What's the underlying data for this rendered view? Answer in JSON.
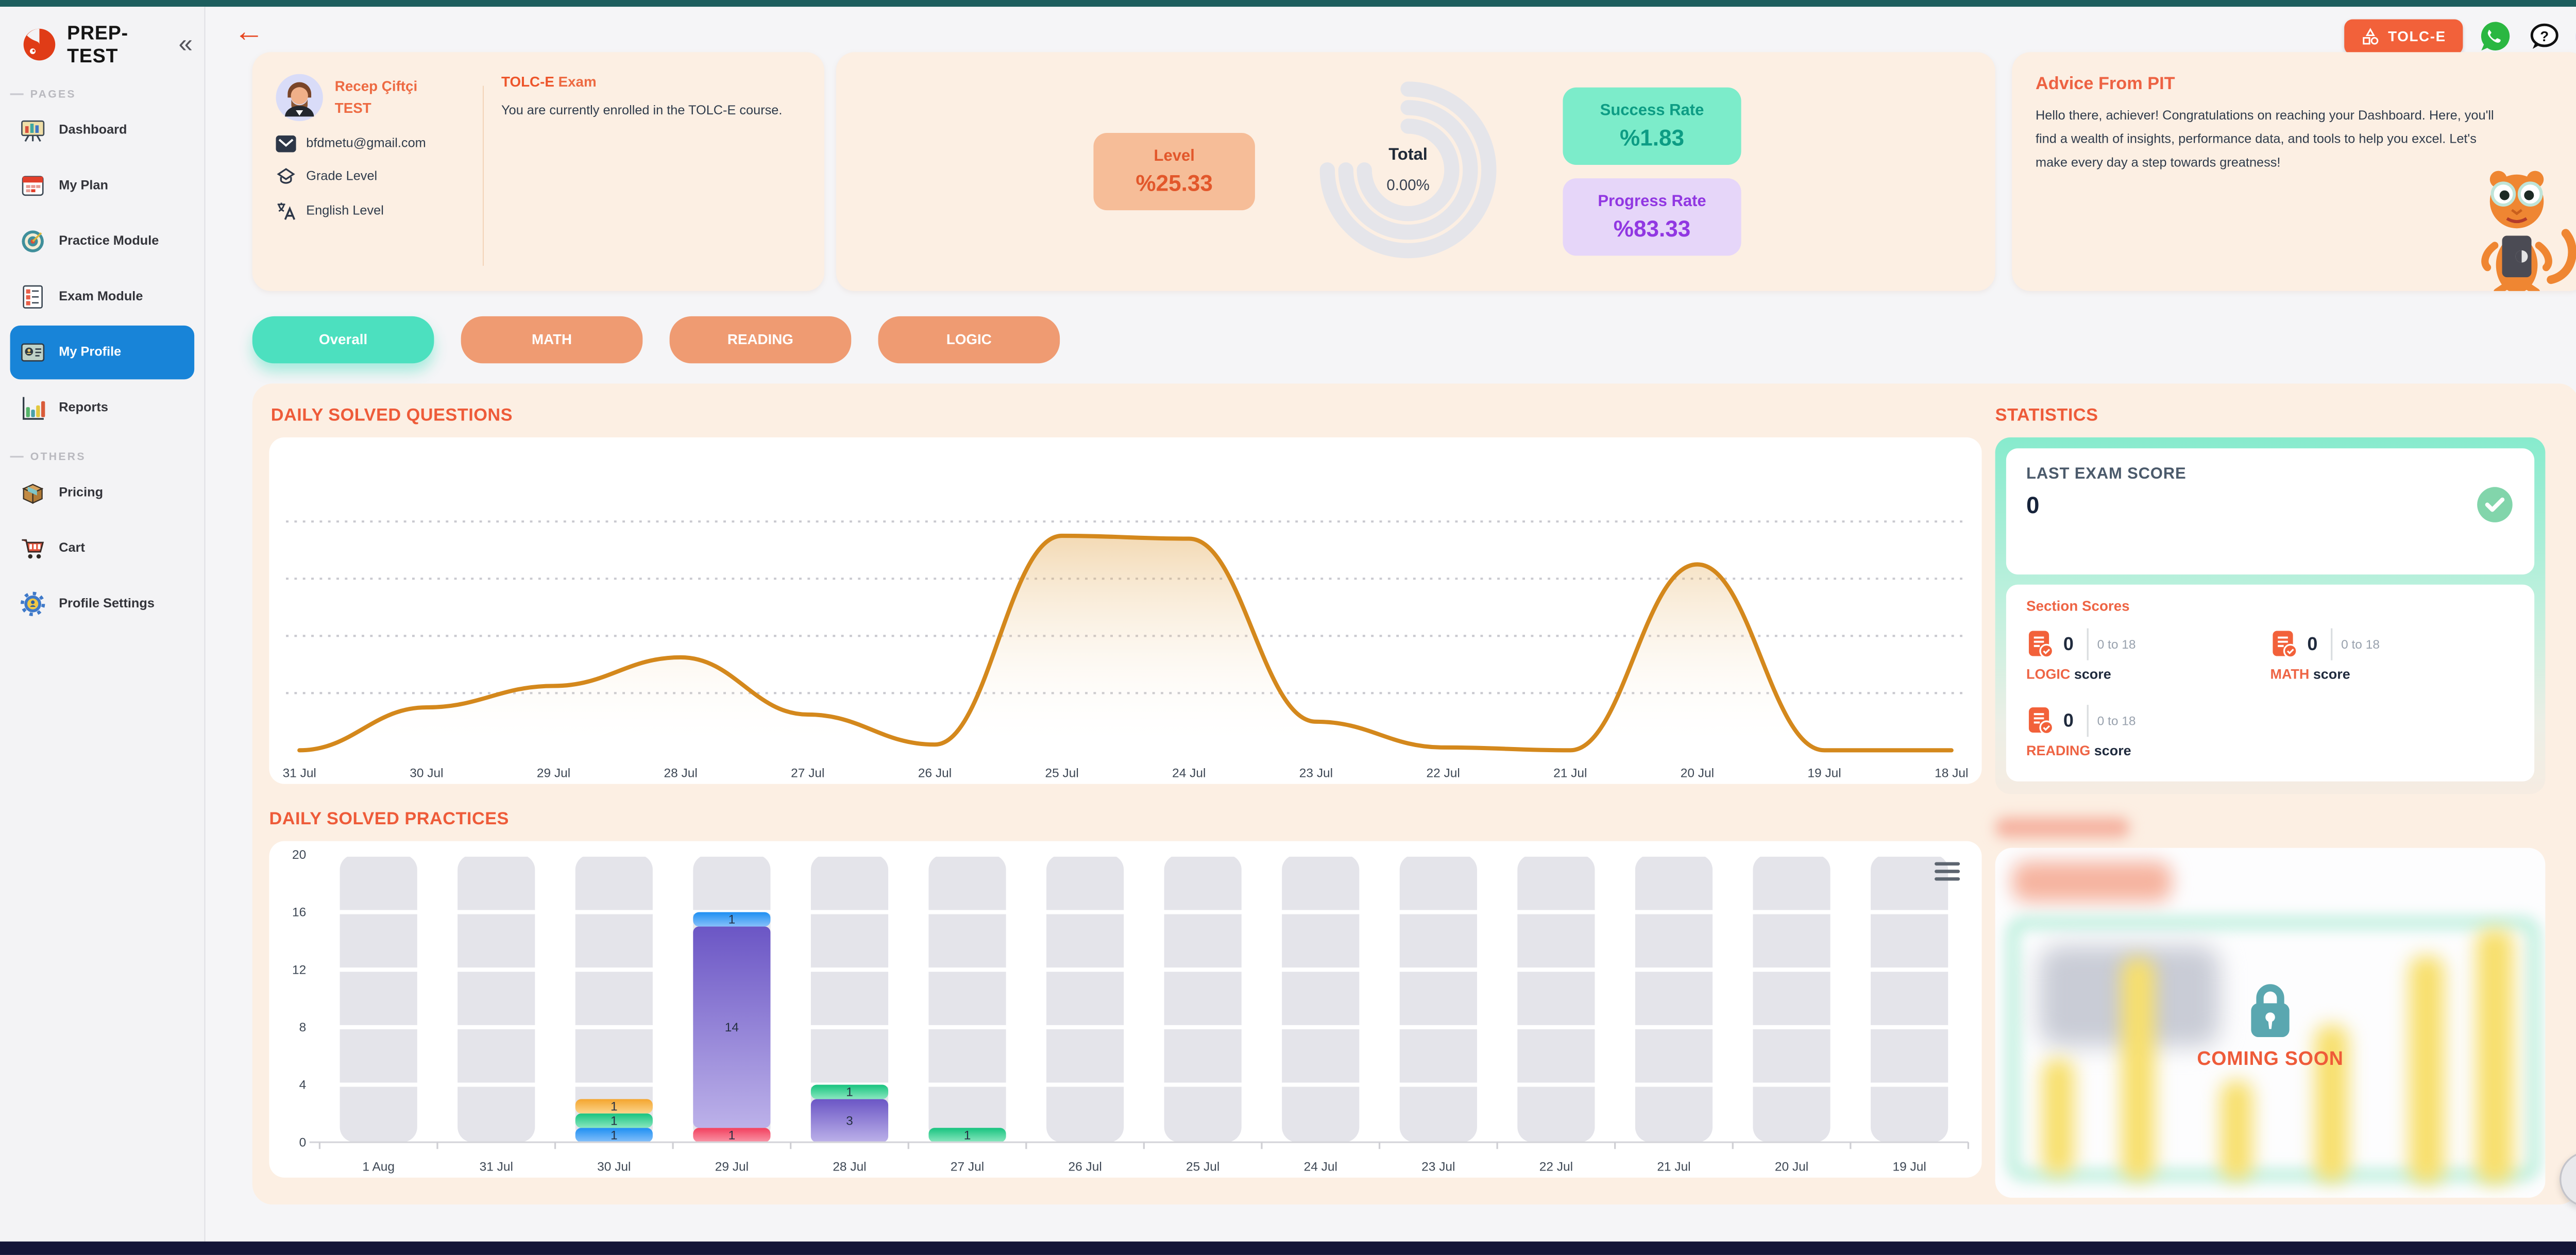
{
  "brand": {
    "name": "PREP-TEST"
  },
  "sidebar": {
    "sections": [
      {
        "label": "PAGES",
        "items": [
          {
            "label": "Dashboard"
          },
          {
            "label": "My Plan"
          },
          {
            "label": "Practice Module"
          },
          {
            "label": "Exam Module"
          },
          {
            "label": "My Profile",
            "active": true
          },
          {
            "label": "Reports"
          }
        ]
      },
      {
        "label": "OTHERS",
        "items": [
          {
            "label": "Pricing"
          },
          {
            "label": "Cart"
          },
          {
            "label": "Profile Settings"
          }
        ]
      }
    ]
  },
  "topbar": {
    "exam_button": "TOLC-E"
  },
  "profile_card": {
    "name": "Recep Çiftçi",
    "surname": "TEST",
    "email": "bfdmetu@gmail.com",
    "grade_label": "Grade Level",
    "english_label": "English Level",
    "exam_name": "TOLC-E",
    "exam_word": " Exam",
    "exam_desc": "You are currently enrolled in the TOLC-E course."
  },
  "stats_card": {
    "level_label": "Level",
    "level_value": "%25.33",
    "gauge_title": "Total",
    "gauge_value": "0.00%",
    "success_label": "Success Rate",
    "success_value": "%1.83",
    "progress_label": "Progress Rate",
    "progress_value": "%83.33"
  },
  "advice_card": {
    "title": "Advice From PIT",
    "body": "Hello there, achiever! Congratulations on reaching your Dashboard. Here, you'll find a wealth of insights, performance data, and tools to help you excel. Let's make every day a step towards greatness!"
  },
  "tabs": [
    {
      "label": "Overall",
      "active": true
    },
    {
      "label": "MATH"
    },
    {
      "label": "READING"
    },
    {
      "label": "LOGIC"
    }
  ],
  "statistics": {
    "title": "STATISTICS",
    "last_exam_label": "LAST EXAM SCORE",
    "last_exam_value": "0",
    "section_scores_title": "Section Scores",
    "scores": [
      {
        "subject": "LOGIC",
        "value": "0",
        "range": "0 to 18",
        "suffix": " score"
      },
      {
        "subject": "MATH",
        "value": "0",
        "range": "0 to 18",
        "suffix": " score"
      },
      {
        "subject": "READING",
        "value": "0",
        "range": "0 to 18",
        "suffix": " score"
      }
    ],
    "coming_soon": "COMING SOON"
  },
  "chart_data": [
    {
      "id": "daily-solved-questions",
      "type": "area",
      "title": "DAILY SOLVED QUESTIONS",
      "x": [
        "31 Jul",
        "30 Jul",
        "29 Jul",
        "28 Jul",
        "27 Jul",
        "26 Jul",
        "25 Jul",
        "24 Jul",
        "23 Jul",
        "22 Jul",
        "21 Jul",
        "20 Jul",
        "19 Jul",
        "18 Jul"
      ],
      "values": [
        0,
        3,
        4.5,
        6.5,
        2.5,
        0.4,
        15,
        14.8,
        2,
        0.2,
        0,
        13,
        0,
        0
      ],
      "ylim": [
        0,
        17
      ],
      "gridline_values": [
        4,
        8,
        12,
        16
      ],
      "grid_style": "dashed",
      "legend": "none",
      "line_color": "#d4881c",
      "fill_top": "rgba(221,148,41,0.35)",
      "fill_bottom": "rgba(255,255,255,0)"
    },
    {
      "id": "daily-solved-practices",
      "type": "bar",
      "stacked": true,
      "title": "DAILY SOLVED PRACTICES",
      "categories": [
        "1 Aug",
        "31 Jul",
        "30 Jul",
        "29 Jul",
        "28 Jul",
        "27 Jul",
        "26 Jul",
        "25 Jul",
        "24 Jul",
        "23 Jul",
        "22 Jul",
        "21 Jul",
        "20 Jul",
        "19 Jul"
      ],
      "yticks": [
        0,
        4,
        8,
        12,
        16,
        20
      ],
      "ylim": [
        0,
        20
      ],
      "track_color": "#e4e4ea",
      "palette": {
        "blue": [
          "#1e8ff2",
          "#86c0fa"
        ],
        "green": [
          "#17c37f",
          "#8ae7bf"
        ],
        "amber": [
          "#f4a52e",
          "#fbd48c"
        ],
        "purple": [
          "#6b56c5",
          "#bcb1e9"
        ],
        "red": [
          "#f23f5d",
          "#f995a7"
        ]
      },
      "bars": [
        {
          "category": "1 Aug",
          "stack": []
        },
        {
          "category": "31 Jul",
          "stack": []
        },
        {
          "category": "30 Jul",
          "stack": [
            {
              "value": 1,
              "color": "blue"
            },
            {
              "value": 1,
              "color": "green"
            },
            {
              "value": 1,
              "color": "amber"
            }
          ]
        },
        {
          "category": "29 Jul",
          "stack": [
            {
              "value": 1,
              "color": "red"
            },
            {
              "value": 14,
              "color": "purple"
            },
            {
              "value": 1,
              "color": "blue"
            }
          ]
        },
        {
          "category": "28 Jul",
          "stack": [
            {
              "value": 3,
              "color": "purple"
            },
            {
              "value": 1,
              "color": "green"
            }
          ]
        },
        {
          "category": "27 Jul",
          "stack": [
            {
              "value": 1,
              "color": "green"
            }
          ]
        },
        {
          "category": "26 Jul",
          "stack": []
        },
        {
          "category": "25 Jul",
          "stack": []
        },
        {
          "category": "24 Jul",
          "stack": []
        },
        {
          "category": "23 Jul",
          "stack": []
        },
        {
          "category": "22 Jul",
          "stack": []
        },
        {
          "category": "21 Jul",
          "stack": []
        },
        {
          "category": "20 Jul",
          "stack": []
        },
        {
          "category": "19 Jul",
          "stack": []
        }
      ]
    }
  ]
}
